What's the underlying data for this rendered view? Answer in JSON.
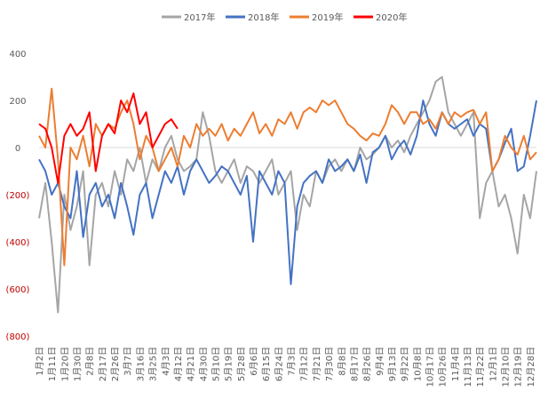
{
  "chart_data": {
    "type": "line",
    "categories": [
      "1月2日",
      null,
      "1月11日",
      null,
      "1月20日",
      null,
      "1月30日",
      null,
      "2月8日",
      null,
      "2月17日",
      null,
      "2月26日",
      null,
      "3月7日",
      null,
      "3月16日",
      null,
      "3月25日",
      null,
      "4月3日",
      null,
      "4月12日",
      null,
      "4月21日",
      null,
      "4月30日",
      null,
      "5月10日",
      null,
      "5月19日",
      null,
      "5月28日",
      null,
      "6月6日",
      null,
      "6月15日",
      null,
      "6月24日",
      null,
      "7月3日",
      null,
      "7月12日",
      null,
      "7月21日",
      null,
      "7月30日",
      null,
      "8月8日",
      null,
      "8月17日",
      null,
      "8月26日",
      null,
      "9月4日",
      null,
      "9月13日",
      null,
      "9月22日",
      null,
      "10月8日",
      null,
      "10月17日",
      null,
      "10月26日",
      null,
      "11月4日",
      null,
      "11月13日",
      null,
      "11月22日",
      null,
      "12月1日",
      null,
      "12月10日",
      null,
      "12月19日",
      null,
      "12月28日",
      null
    ],
    "series": [
      {
        "name": "2017年",
        "color": "#a5a5a5",
        "values": [
          -300,
          -150,
          -400,
          -700,
          -200,
          -350,
          -250,
          -100,
          -500,
          -200,
          -150,
          -250,
          -100,
          -200,
          -50,
          -100,
          0,
          -150,
          -50,
          -100,
          0,
          50,
          -50,
          -100,
          -80,
          -50,
          150,
          50,
          -100,
          -150,
          -100,
          -50,
          -150,
          -80,
          -100,
          -150,
          -100,
          -50,
          -200,
          -150,
          -100,
          -350,
          -200,
          -250,
          -100,
          -150,
          -80,
          -50,
          -100,
          -50,
          -100,
          0,
          -50,
          -30,
          0,
          50,
          0,
          30,
          -20,
          50,
          100,
          150,
          200,
          280,
          300,
          150,
          100,
          50,
          100,
          150,
          -300,
          -150,
          -100,
          -250,
          -200,
          -300,
          -450,
          -200,
          -300,
          -100
        ]
      },
      {
        "name": "2018年",
        "color": "#4472c4",
        "values": [
          -50,
          -100,
          -200,
          -150,
          -250,
          -300,
          -100,
          -380,
          -200,
          -150,
          -250,
          -200,
          -300,
          -150,
          -250,
          -370,
          -200,
          -150,
          -300,
          -200,
          -100,
          -150,
          -80,
          -200,
          -100,
          -50,
          -100,
          -150,
          -120,
          -80,
          -100,
          -150,
          -200,
          -120,
          -400,
          -100,
          -150,
          -200,
          -100,
          -150,
          -580,
          -250,
          -150,
          -120,
          -100,
          -150,
          -50,
          -100,
          -80,
          -50,
          -100,
          -30,
          -150,
          -20,
          0,
          50,
          -50,
          0,
          30,
          -30,
          50,
          200,
          100,
          50,
          150,
          100,
          80,
          100,
          120,
          50,
          100,
          80,
          -100,
          -50,
          20,
          80,
          -100,
          -80,
          50,
          200
        ]
      },
      {
        "name": "2019年",
        "color": "#ed7d31",
        "values": [
          50,
          0,
          250,
          -50,
          -500,
          0,
          -50,
          50,
          -80,
          100,
          50,
          100,
          80,
          150,
          200,
          100,
          -50,
          50,
          0,
          -100,
          -50,
          0,
          -80,
          50,
          0,
          100,
          50,
          80,
          50,
          100,
          30,
          80,
          50,
          100,
          150,
          60,
          100,
          50,
          120,
          100,
          150,
          80,
          150,
          170,
          150,
          200,
          180,
          200,
          150,
          100,
          80,
          50,
          30,
          60,
          50,
          100,
          180,
          150,
          100,
          150,
          150,
          100,
          120,
          80,
          150,
          100,
          150,
          130,
          150,
          160,
          100,
          150,
          -100,
          -50,
          50,
          0,
          -30,
          50,
          -50,
          -20
        ]
      },
      {
        "name": "2020年",
        "color": "#ff0000",
        "values": [
          100,
          80,
          0,
          -150,
          50,
          100,
          50,
          80,
          150,
          -100,
          50,
          100,
          60,
          200,
          150,
          230,
          100,
          150,
          0,
          50,
          100,
          120,
          80,
          null,
          null,
          null,
          null,
          null,
          null,
          null,
          null,
          null,
          null,
          null,
          null,
          null,
          null,
          null,
          null,
          null,
          null,
          null,
          null,
          null,
          null,
          null,
          null,
          null,
          null,
          null,
          null,
          null,
          null,
          null,
          null,
          null,
          null,
          null,
          null,
          null,
          null,
          null,
          null,
          null,
          null,
          null,
          null,
          null,
          null,
          null,
          null,
          null,
          null,
          null,
          null,
          null,
          null,
          null,
          null,
          null
        ]
      }
    ],
    "ylim": [
      -800,
      400
    ],
    "yticks": [
      {
        "value": -800,
        "label": "(800)"
      },
      {
        "value": -600,
        "label": "(600)"
      },
      {
        "value": -400,
        "label": "(400)"
      },
      {
        "value": -200,
        "label": "(200)"
      },
      0,
      200,
      400
    ],
    "negative_tick_color": "#c00000",
    "legend": "top"
  }
}
